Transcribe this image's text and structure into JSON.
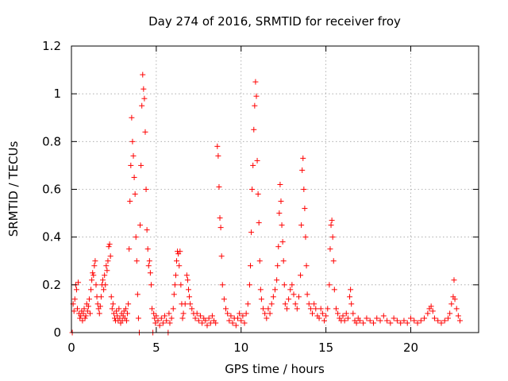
{
  "chart_data": {
    "type": "scatter",
    "title": "Day 274 of 2016, SRMTID for receiver froy",
    "xlabel": "GPS time / hours",
    "ylabel": "SRMTID / TECUs",
    "xlim": [
      0,
      24
    ],
    "ylim": [
      0,
      1.2
    ],
    "xticks": [
      0,
      5,
      10,
      15,
      20
    ],
    "xtick_labels": [
      "0",
      "5",
      "10",
      "15",
      "20"
    ],
    "yticks": [
      0,
      0.2,
      0.4,
      0.6,
      0.8,
      1.0,
      1.2
    ],
    "ytick_labels": [
      "0",
      "0.2",
      "0.4",
      "0.6",
      "0.8",
      "1",
      "1.2"
    ],
    "grid": true,
    "marker": "plus",
    "color": "#ff0000",
    "series": [
      {
        "name": "SRMTID",
        "points": [
          [
            0.05,
            0.0
          ],
          [
            0.1,
            0.12
          ],
          [
            0.15,
            0.09
          ],
          [
            0.2,
            0.14
          ],
          [
            0.25,
            0.2
          ],
          [
            0.3,
            0.18
          ],
          [
            0.35,
            0.1
          ],
          [
            0.4,
            0.21
          ],
          [
            0.45,
            0.08
          ],
          [
            0.5,
            0.06
          ],
          [
            0.55,
            0.07
          ],
          [
            0.6,
            0.09
          ],
          [
            0.65,
            0.05
          ],
          [
            0.7,
            0.08
          ],
          [
            0.75,
            0.1
          ],
          [
            0.8,
            0.06
          ],
          [
            0.85,
            0.07
          ],
          [
            0.9,
            0.12
          ],
          [
            0.95,
            0.09
          ],
          [
            1.0,
            0.11
          ],
          [
            1.05,
            0.14
          ],
          [
            1.1,
            0.08
          ],
          [
            1.15,
            0.18
          ],
          [
            1.2,
            0.22
          ],
          [
            1.25,
            0.25
          ],
          [
            1.3,
            0.24
          ],
          [
            1.35,
            0.28
          ],
          [
            1.4,
            0.3
          ],
          [
            1.45,
            0.2
          ],
          [
            1.5,
            0.15
          ],
          [
            1.55,
            0.12
          ],
          [
            1.6,
            0.1
          ],
          [
            1.65,
            0.08
          ],
          [
            1.7,
            0.11
          ],
          [
            1.75,
            0.15
          ],
          [
            1.8,
            0.2
          ],
          [
            1.85,
            0.22
          ],
          [
            1.9,
            0.18
          ],
          [
            1.95,
            0.24
          ],
          [
            2.0,
            0.2
          ],
          [
            2.05,
            0.28
          ],
          [
            2.1,
            0.26
          ],
          [
            2.15,
            0.3
          ],
          [
            2.2,
            0.36
          ],
          [
            2.25,
            0.37
          ],
          [
            2.3,
            0.32
          ],
          [
            2.35,
            0.15
          ],
          [
            2.4,
            0.1
          ],
          [
            2.45,
            0.12
          ],
          [
            2.5,
            0.08
          ],
          [
            2.55,
            0.06
          ],
          [
            2.6,
            0.05
          ],
          [
            2.65,
            0.09
          ],
          [
            2.7,
            0.07
          ],
          [
            2.75,
            0.05
          ],
          [
            2.8,
            0.1
          ],
          [
            2.85,
            0.06
          ],
          [
            2.9,
            0.04
          ],
          [
            2.95,
            0.08
          ],
          [
            3.0,
            0.05
          ],
          [
            3.05,
            0.07
          ],
          [
            3.1,
            0.09
          ],
          [
            3.15,
            0.06
          ],
          [
            3.2,
            0.1
          ],
          [
            3.25,
            0.05
          ],
          [
            3.3,
            0.08
          ],
          [
            3.35,
            0.12
          ],
          [
            3.4,
            0.35
          ],
          [
            3.45,
            0.55
          ],
          [
            3.5,
            0.7
          ],
          [
            3.55,
            0.9
          ],
          [
            3.6,
            0.8
          ],
          [
            3.65,
            0.74
          ],
          [
            3.7,
            0.65
          ],
          [
            3.75,
            0.58
          ],
          [
            3.8,
            0.4
          ],
          [
            3.85,
            0.3
          ],
          [
            3.9,
            0.16
          ],
          [
            3.95,
            0.06
          ],
          [
            4.0,
            0.0
          ],
          [
            4.05,
            0.45
          ],
          [
            4.1,
            0.7
          ],
          [
            4.15,
            0.95
          ],
          [
            4.2,
            1.08
          ],
          [
            4.25,
            1.02
          ],
          [
            4.3,
            0.98
          ],
          [
            4.35,
            0.84
          ],
          [
            4.4,
            0.6
          ],
          [
            4.45,
            0.43
          ],
          [
            4.5,
            0.35
          ],
          [
            4.55,
            0.28
          ],
          [
            4.6,
            0.3
          ],
          [
            4.65,
            0.25
          ],
          [
            4.7,
            0.2
          ],
          [
            4.75,
            0.1
          ],
          [
            4.8,
            0.0
          ],
          [
            4.85,
            0.08
          ],
          [
            4.9,
            0.06
          ],
          [
            4.95,
            0.04
          ],
          [
            5.0,
            0.07
          ],
          [
            5.1,
            0.05
          ],
          [
            5.2,
            0.03
          ],
          [
            5.3,
            0.06
          ],
          [
            5.4,
            0.04
          ],
          [
            5.5,
            0.07
          ],
          [
            5.6,
            0.05
          ],
          [
            5.7,
            0.0
          ],
          [
            5.75,
            0.08
          ],
          [
            5.8,
            0.04
          ],
          [
            5.9,
            0.06
          ],
          [
            6.0,
            0.1
          ],
          [
            6.05,
            0.16
          ],
          [
            6.1,
            0.2
          ],
          [
            6.15,
            0.24
          ],
          [
            6.2,
            0.3
          ],
          [
            6.25,
            0.34
          ],
          [
            6.3,
            0.33
          ],
          [
            6.35,
            0.28
          ],
          [
            6.4,
            0.34
          ],
          [
            6.45,
            0.2
          ],
          [
            6.5,
            0.12
          ],
          [
            6.55,
            0.06
          ],
          [
            6.6,
            0.08
          ],
          [
            6.7,
            0.12
          ],
          [
            6.8,
            0.24
          ],
          [
            6.85,
            0.22
          ],
          [
            6.9,
            0.18
          ],
          [
            6.95,
            0.15
          ],
          [
            7.0,
            0.12
          ],
          [
            7.1,
            0.1
          ],
          [
            7.2,
            0.08
          ],
          [
            7.3,
            0.06
          ],
          [
            7.4,
            0.08
          ],
          [
            7.5,
            0.05
          ],
          [
            7.6,
            0.07
          ],
          [
            7.7,
            0.04
          ],
          [
            7.8,
            0.06
          ],
          [
            7.9,
            0.05
          ],
          [
            8.0,
            0.03
          ],
          [
            8.1,
            0.06
          ],
          [
            8.2,
            0.04
          ],
          [
            8.3,
            0.07
          ],
          [
            8.4,
            0.05
          ],
          [
            8.5,
            0.04
          ],
          [
            8.6,
            0.78
          ],
          [
            8.65,
            0.74
          ],
          [
            8.7,
            0.61
          ],
          [
            8.75,
            0.48
          ],
          [
            8.8,
            0.44
          ],
          [
            8.85,
            0.32
          ],
          [
            8.9,
            0.2
          ],
          [
            9.0,
            0.14
          ],
          [
            9.1,
            0.1
          ],
          [
            9.2,
            0.08
          ],
          [
            9.3,
            0.05
          ],
          [
            9.4,
            0.07
          ],
          [
            9.5,
            0.04
          ],
          [
            9.6,
            0.06
          ],
          [
            9.7,
            0.03
          ],
          [
            9.8,
            0.06
          ],
          [
            9.9,
            0.08
          ],
          [
            10.0,
            0.05
          ],
          [
            10.1,
            0.07
          ],
          [
            10.2,
            0.04
          ],
          [
            10.3,
            0.08
          ],
          [
            10.4,
            0.12
          ],
          [
            10.5,
            0.2
          ],
          [
            10.55,
            0.28
          ],
          [
            10.6,
            0.42
          ],
          [
            10.65,
            0.6
          ],
          [
            10.7,
            0.7
          ],
          [
            10.75,
            0.85
          ],
          [
            10.8,
            0.95
          ],
          [
            10.85,
            1.05
          ],
          [
            10.9,
            0.99
          ],
          [
            10.95,
            0.72
          ],
          [
            11.0,
            0.58
          ],
          [
            11.05,
            0.46
          ],
          [
            11.1,
            0.3
          ],
          [
            11.15,
            0.18
          ],
          [
            11.2,
            0.14
          ],
          [
            11.3,
            0.1
          ],
          [
            11.4,
            0.08
          ],
          [
            11.5,
            0.06
          ],
          [
            11.6,
            0.1
          ],
          [
            11.7,
            0.08
          ],
          [
            11.8,
            0.12
          ],
          [
            11.9,
            0.15
          ],
          [
            12.0,
            0.18
          ],
          [
            12.1,
            0.22
          ],
          [
            12.15,
            0.28
          ],
          [
            12.2,
            0.36
          ],
          [
            12.25,
            0.5
          ],
          [
            12.3,
            0.62
          ],
          [
            12.35,
            0.55
          ],
          [
            12.4,
            0.45
          ],
          [
            12.45,
            0.38
          ],
          [
            12.5,
            0.3
          ],
          [
            12.55,
            0.2
          ],
          [
            12.6,
            0.12
          ],
          [
            12.7,
            0.1
          ],
          [
            12.8,
            0.14
          ],
          [
            12.9,
            0.18
          ],
          [
            13.0,
            0.2
          ],
          [
            13.1,
            0.16
          ],
          [
            13.2,
            0.12
          ],
          [
            13.3,
            0.1
          ],
          [
            13.4,
            0.15
          ],
          [
            13.5,
            0.24
          ],
          [
            13.55,
            0.45
          ],
          [
            13.6,
            0.68
          ],
          [
            13.65,
            0.73
          ],
          [
            13.7,
            0.6
          ],
          [
            13.75,
            0.52
          ],
          [
            13.8,
            0.4
          ],
          [
            13.85,
            0.28
          ],
          [
            13.9,
            0.16
          ],
          [
            14.0,
            0.12
          ],
          [
            14.1,
            0.1
          ],
          [
            14.2,
            0.08
          ],
          [
            14.3,
            0.12
          ],
          [
            14.4,
            0.1
          ],
          [
            14.5,
            0.07
          ],
          [
            14.6,
            0.06
          ],
          [
            14.7,
            0.1
          ],
          [
            14.8,
            0.08
          ],
          [
            14.9,
            0.05
          ],
          [
            15.0,
            0.07
          ],
          [
            15.1,
            0.1
          ],
          [
            15.2,
            0.2
          ],
          [
            15.25,
            0.35
          ],
          [
            15.3,
            0.45
          ],
          [
            15.35,
            0.47
          ],
          [
            15.4,
            0.4
          ],
          [
            15.45,
            0.3
          ],
          [
            15.5,
            0.18
          ],
          [
            15.6,
            0.1
          ],
          [
            15.7,
            0.08
          ],
          [
            15.8,
            0.06
          ],
          [
            15.9,
            0.05
          ],
          [
            16.0,
            0.07
          ],
          [
            16.1,
            0.05
          ],
          [
            16.2,
            0.08
          ],
          [
            16.3,
            0.06
          ],
          [
            16.4,
            0.15
          ],
          [
            16.45,
            0.18
          ],
          [
            16.5,
            0.12
          ],
          [
            16.6,
            0.08
          ],
          [
            16.7,
            0.05
          ],
          [
            16.8,
            0.04
          ],
          [
            16.9,
            0.06
          ],
          [
            17.0,
            0.05
          ],
          [
            17.2,
            0.04
          ],
          [
            17.4,
            0.06
          ],
          [
            17.6,
            0.05
          ],
          [
            17.8,
            0.04
          ],
          [
            18.0,
            0.06
          ],
          [
            18.2,
            0.05
          ],
          [
            18.4,
            0.07
          ],
          [
            18.6,
            0.05
          ],
          [
            18.8,
            0.04
          ],
          [
            19.0,
            0.06
          ],
          [
            19.2,
            0.05
          ],
          [
            19.4,
            0.04
          ],
          [
            19.6,
            0.05
          ],
          [
            19.8,
            0.04
          ],
          [
            20.0,
            0.06
          ],
          [
            20.2,
            0.05
          ],
          [
            20.4,
            0.04
          ],
          [
            20.6,
            0.05
          ],
          [
            20.8,
            0.06
          ],
          [
            21.0,
            0.08
          ],
          [
            21.1,
            0.1
          ],
          [
            21.2,
            0.11
          ],
          [
            21.3,
            0.09
          ],
          [
            21.4,
            0.06
          ],
          [
            21.6,
            0.05
          ],
          [
            21.8,
            0.04
          ],
          [
            22.0,
            0.05
          ],
          [
            22.2,
            0.06
          ],
          [
            22.3,
            0.08
          ],
          [
            22.4,
            0.12
          ],
          [
            22.5,
            0.15
          ],
          [
            22.55,
            0.22
          ],
          [
            22.6,
            0.14
          ],
          [
            22.7,
            0.1
          ],
          [
            22.8,
            0.07
          ],
          [
            22.9,
            0.05
          ]
        ]
      }
    ]
  }
}
